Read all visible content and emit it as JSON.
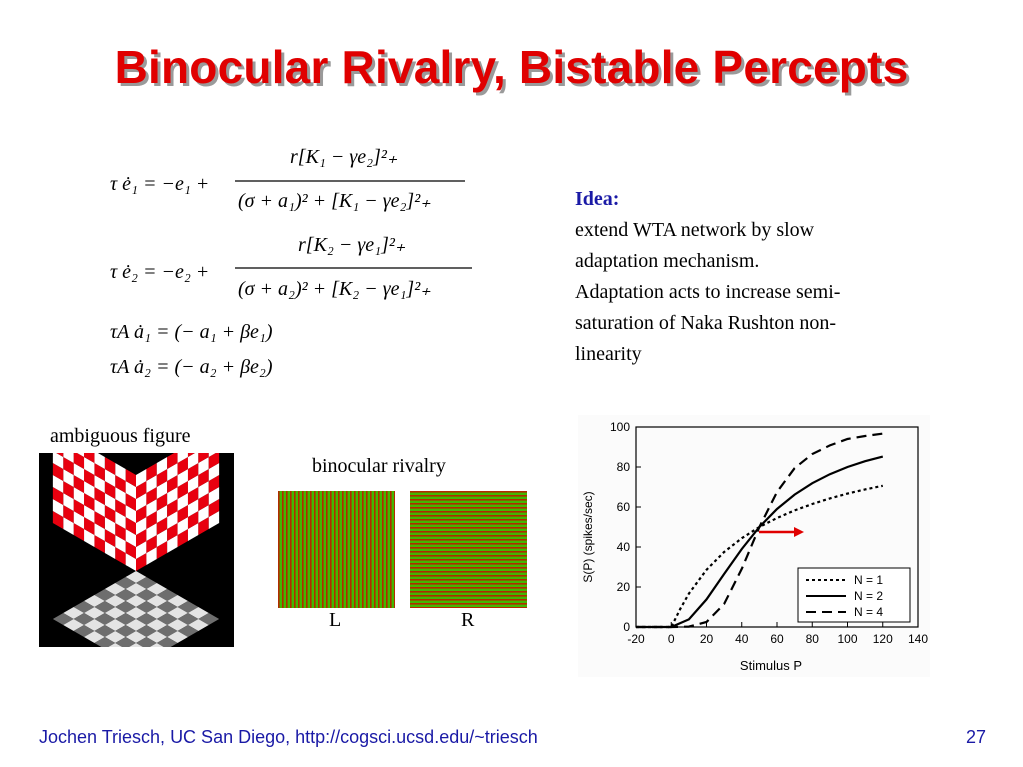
{
  "slide": {
    "title": "Binocular Rivalry, Bistable Percepts",
    "footer": "Jochen Triesch, UC San Diego, http://cogsci.ucsd.edu/~triesch",
    "page_number": "27"
  },
  "idea": {
    "heading": "Idea:",
    "lines": [
      "extend WTA network by slow",
      "adaptation mechanism.",
      "Adaptation acts to increase semi-",
      "saturation of Naka Rushton non-",
      "linearity"
    ]
  },
  "equations": {
    "eq1_lhs": "τ ė₁ = −e₁ +",
    "eq2_lhs": "τ ė₂ = −e₂ +",
    "eq3": "τA ȧ₁ = (− a₁ + βe₁)",
    "eq4": "τA ȧ₂ = (− a₂ + βe₂)"
  },
  "figures": {
    "ambiguous_caption": "ambiguous figure",
    "rivalry_caption": "binocular rivalry",
    "left_label": "L",
    "right_label": "R"
  },
  "colors": {
    "title": "#e00000",
    "accent_blue": "#1a1aa6",
    "checker_red": "#e8000f",
    "stripe_green": "#41b800",
    "stripe_red": "#b22a00"
  },
  "chart_data": {
    "type": "line",
    "xlabel": "Stimulus P",
    "ylabel": "S(P) (spikes/sec)",
    "xlim": [
      -20,
      140
    ],
    "ylim": [
      0,
      100
    ],
    "x_ticks": [
      -20,
      0,
      20,
      40,
      60,
      80,
      100,
      120,
      140
    ],
    "y_ticks": [
      0,
      20,
      40,
      60,
      80,
      100
    ],
    "legend_position": "bottom-right",
    "series": [
      {
        "name": "N = 1",
        "style": "dotted",
        "x": [
          -20,
          0,
          5,
          10,
          20,
          30,
          40,
          50,
          60,
          70,
          80,
          90,
          100,
          110,
          120
        ],
        "y": [
          0,
          0,
          8.9,
          16.7,
          28.6,
          37.5,
          44.4,
          50,
          54.5,
          58.3,
          61.5,
          64.3,
          66.7,
          68.8,
          70.6
        ]
      },
      {
        "name": "N = 2",
        "style": "solid",
        "x": [
          -20,
          0,
          10,
          20,
          30,
          40,
          50,
          60,
          70,
          80,
          90,
          100,
          110,
          120
        ],
        "y": [
          0,
          0,
          3.8,
          13.8,
          26.5,
          39,
          50,
          59,
          66.2,
          71.9,
          76.4,
          80,
          82.9,
          85.2
        ]
      },
      {
        "name": "N = 4",
        "style": "dashed",
        "x": [
          -20,
          0,
          10,
          20,
          30,
          40,
          50,
          60,
          70,
          80,
          90,
          100,
          110,
          120
        ],
        "y": [
          0,
          0,
          0.2,
          2.5,
          11.5,
          29.1,
          50,
          67.5,
          79.4,
          86.5,
          90.8,
          94,
          95.5,
          96.7
        ]
      }
    ]
  }
}
